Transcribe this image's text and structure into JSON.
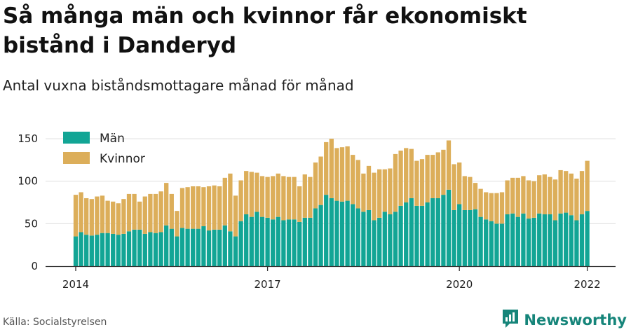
{
  "title": "Så många män och kvinnor får ekonomiskt bistånd i Danderyd",
  "subtitle": "Antal vuxna biståndsmottagare månad för månad",
  "source": "Källa: Socialstyrelsen",
  "brand": {
    "name": "Newsworthy",
    "icon": "newsworthy-logo-icon"
  },
  "colors": {
    "men": "#12a595",
    "women": "#dcae5a",
    "grid": "#e3e3e3",
    "axis": "#333333",
    "brand": "#16857a"
  },
  "chart_data": {
    "type": "bar",
    "stacked": true,
    "title": "",
    "xlabel": "",
    "ylabel": "",
    "ylim": [
      0,
      160
    ],
    "yticks": [
      0,
      50,
      100,
      150
    ],
    "xticks": [
      {
        "label": "2014",
        "index": 0
      },
      {
        "label": "2017",
        "index": 36
      },
      {
        "label": "2020",
        "index": 72
      },
      {
        "label": "2022",
        "index": 96
      }
    ],
    "grid": true,
    "legend_position": "top-left",
    "series": [
      {
        "name": "Män",
        "values": [
          35,
          40,
          37,
          36,
          37,
          39,
          39,
          38,
          37,
          38,
          41,
          43,
          43,
          38,
          40,
          39,
          40,
          48,
          44,
          35,
          45,
          44,
          44,
          44,
          47,
          42,
          43,
          43,
          48,
          41,
          35,
          53,
          61,
          58,
          64,
          58,
          57,
          55,
          58,
          54,
          55,
          55,
          52,
          57,
          57,
          68,
          72,
          84,
          80,
          77,
          76,
          77,
          73,
          68,
          64,
          66,
          54,
          57,
          64,
          61,
          64,
          71,
          75,
          80,
          71,
          71,
          75,
          80,
          80,
          84,
          90,
          66,
          73,
          66,
          66,
          67,
          58,
          55,
          53,
          50,
          50,
          61,
          62,
          58,
          62,
          56,
          57,
          62,
          61,
          61,
          54,
          62,
          63,
          60,
          54,
          61,
          65
        ]
      },
      {
        "name": "Kvinnor",
        "values": [
          49,
          47,
          43,
          43,
          45,
          44,
          38,
          38,
          37,
          41,
          44,
          42,
          33,
          44,
          45,
          46,
          48,
          50,
          41,
          30,
          47,
          49,
          50,
          50,
          46,
          52,
          52,
          51,
          56,
          68,
          48,
          48,
          51,
          53,
          46,
          48,
          48,
          51,
          51,
          52,
          50,
          50,
          42,
          51,
          48,
          54,
          57,
          62,
          70,
          62,
          64,
          64,
          58,
          57,
          45,
          52,
          56,
          57,
          50,
          54,
          68,
          65,
          64,
          58,
          53,
          55,
          56,
          51,
          54,
          53,
          58,
          54,
          49,
          40,
          39,
          31,
          33,
          32,
          33,
          36,
          37,
          40,
          42,
          46,
          44,
          45,
          43,
          45,
          47,
          44,
          48,
          51,
          49,
          49,
          49,
          51,
          59
        ]
      }
    ]
  }
}
